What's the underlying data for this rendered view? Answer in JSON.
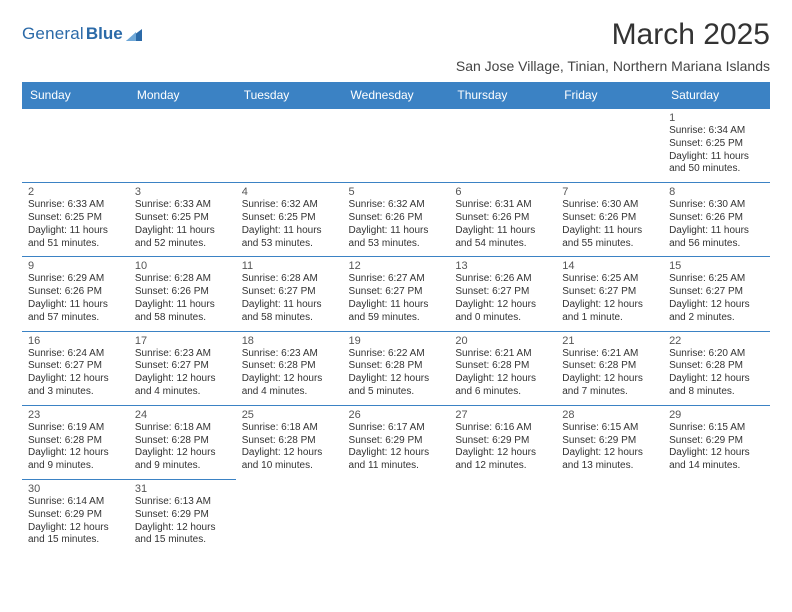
{
  "brand": {
    "part1": "General",
    "part2": "Blue"
  },
  "title": "March 2025",
  "subtitle": "San Jose Village, Tinian, Northern Mariana Islands",
  "colors": {
    "header_bg": "#3b82c4",
    "header_text": "#ffffff",
    "cell_border": "#3b82c4",
    "brand_text": "#2b6aa8",
    "body_text": "#333333",
    "background": "#ffffff"
  },
  "days_of_week": [
    "Sunday",
    "Monday",
    "Tuesday",
    "Wednesday",
    "Thursday",
    "Friday",
    "Saturday"
  ],
  "weeks": [
    [
      null,
      null,
      null,
      null,
      null,
      null,
      {
        "num": "1",
        "sunrise": "Sunrise: 6:34 AM",
        "sunset": "Sunset: 6:25 PM",
        "daylight": "Daylight: 11 hours and 50 minutes."
      }
    ],
    [
      {
        "num": "2",
        "sunrise": "Sunrise: 6:33 AM",
        "sunset": "Sunset: 6:25 PM",
        "daylight": "Daylight: 11 hours and 51 minutes."
      },
      {
        "num": "3",
        "sunrise": "Sunrise: 6:33 AM",
        "sunset": "Sunset: 6:25 PM",
        "daylight": "Daylight: 11 hours and 52 minutes."
      },
      {
        "num": "4",
        "sunrise": "Sunrise: 6:32 AM",
        "sunset": "Sunset: 6:25 PM",
        "daylight": "Daylight: 11 hours and 53 minutes."
      },
      {
        "num": "5",
        "sunrise": "Sunrise: 6:32 AM",
        "sunset": "Sunset: 6:26 PM",
        "daylight": "Daylight: 11 hours and 53 minutes."
      },
      {
        "num": "6",
        "sunrise": "Sunrise: 6:31 AM",
        "sunset": "Sunset: 6:26 PM",
        "daylight": "Daylight: 11 hours and 54 minutes."
      },
      {
        "num": "7",
        "sunrise": "Sunrise: 6:30 AM",
        "sunset": "Sunset: 6:26 PM",
        "daylight": "Daylight: 11 hours and 55 minutes."
      },
      {
        "num": "8",
        "sunrise": "Sunrise: 6:30 AM",
        "sunset": "Sunset: 6:26 PM",
        "daylight": "Daylight: 11 hours and 56 minutes."
      }
    ],
    [
      {
        "num": "9",
        "sunrise": "Sunrise: 6:29 AM",
        "sunset": "Sunset: 6:26 PM",
        "daylight": "Daylight: 11 hours and 57 minutes."
      },
      {
        "num": "10",
        "sunrise": "Sunrise: 6:28 AM",
        "sunset": "Sunset: 6:26 PM",
        "daylight": "Daylight: 11 hours and 58 minutes."
      },
      {
        "num": "11",
        "sunrise": "Sunrise: 6:28 AM",
        "sunset": "Sunset: 6:27 PM",
        "daylight": "Daylight: 11 hours and 58 minutes."
      },
      {
        "num": "12",
        "sunrise": "Sunrise: 6:27 AM",
        "sunset": "Sunset: 6:27 PM",
        "daylight": "Daylight: 11 hours and 59 minutes."
      },
      {
        "num": "13",
        "sunrise": "Sunrise: 6:26 AM",
        "sunset": "Sunset: 6:27 PM",
        "daylight": "Daylight: 12 hours and 0 minutes."
      },
      {
        "num": "14",
        "sunrise": "Sunrise: 6:25 AM",
        "sunset": "Sunset: 6:27 PM",
        "daylight": "Daylight: 12 hours and 1 minute."
      },
      {
        "num": "15",
        "sunrise": "Sunrise: 6:25 AM",
        "sunset": "Sunset: 6:27 PM",
        "daylight": "Daylight: 12 hours and 2 minutes."
      }
    ],
    [
      {
        "num": "16",
        "sunrise": "Sunrise: 6:24 AM",
        "sunset": "Sunset: 6:27 PM",
        "daylight": "Daylight: 12 hours and 3 minutes."
      },
      {
        "num": "17",
        "sunrise": "Sunrise: 6:23 AM",
        "sunset": "Sunset: 6:27 PM",
        "daylight": "Daylight: 12 hours and 4 minutes."
      },
      {
        "num": "18",
        "sunrise": "Sunrise: 6:23 AM",
        "sunset": "Sunset: 6:28 PM",
        "daylight": "Daylight: 12 hours and 4 minutes."
      },
      {
        "num": "19",
        "sunrise": "Sunrise: 6:22 AM",
        "sunset": "Sunset: 6:28 PM",
        "daylight": "Daylight: 12 hours and 5 minutes."
      },
      {
        "num": "20",
        "sunrise": "Sunrise: 6:21 AM",
        "sunset": "Sunset: 6:28 PM",
        "daylight": "Daylight: 12 hours and 6 minutes."
      },
      {
        "num": "21",
        "sunrise": "Sunrise: 6:21 AM",
        "sunset": "Sunset: 6:28 PM",
        "daylight": "Daylight: 12 hours and 7 minutes."
      },
      {
        "num": "22",
        "sunrise": "Sunrise: 6:20 AM",
        "sunset": "Sunset: 6:28 PM",
        "daylight": "Daylight: 12 hours and 8 minutes."
      }
    ],
    [
      {
        "num": "23",
        "sunrise": "Sunrise: 6:19 AM",
        "sunset": "Sunset: 6:28 PM",
        "daylight": "Daylight: 12 hours and 9 minutes."
      },
      {
        "num": "24",
        "sunrise": "Sunrise: 6:18 AM",
        "sunset": "Sunset: 6:28 PM",
        "daylight": "Daylight: 12 hours and 9 minutes."
      },
      {
        "num": "25",
        "sunrise": "Sunrise: 6:18 AM",
        "sunset": "Sunset: 6:28 PM",
        "daylight": "Daylight: 12 hours and 10 minutes."
      },
      {
        "num": "26",
        "sunrise": "Sunrise: 6:17 AM",
        "sunset": "Sunset: 6:29 PM",
        "daylight": "Daylight: 12 hours and 11 minutes."
      },
      {
        "num": "27",
        "sunrise": "Sunrise: 6:16 AM",
        "sunset": "Sunset: 6:29 PM",
        "daylight": "Daylight: 12 hours and 12 minutes."
      },
      {
        "num": "28",
        "sunrise": "Sunrise: 6:15 AM",
        "sunset": "Sunset: 6:29 PM",
        "daylight": "Daylight: 12 hours and 13 minutes."
      },
      {
        "num": "29",
        "sunrise": "Sunrise: 6:15 AM",
        "sunset": "Sunset: 6:29 PM",
        "daylight": "Daylight: 12 hours and 14 minutes."
      }
    ],
    [
      {
        "num": "30",
        "sunrise": "Sunrise: 6:14 AM",
        "sunset": "Sunset: 6:29 PM",
        "daylight": "Daylight: 12 hours and 15 minutes."
      },
      {
        "num": "31",
        "sunrise": "Sunrise: 6:13 AM",
        "sunset": "Sunset: 6:29 PM",
        "daylight": "Daylight: 12 hours and 15 minutes."
      },
      null,
      null,
      null,
      null,
      null
    ]
  ]
}
